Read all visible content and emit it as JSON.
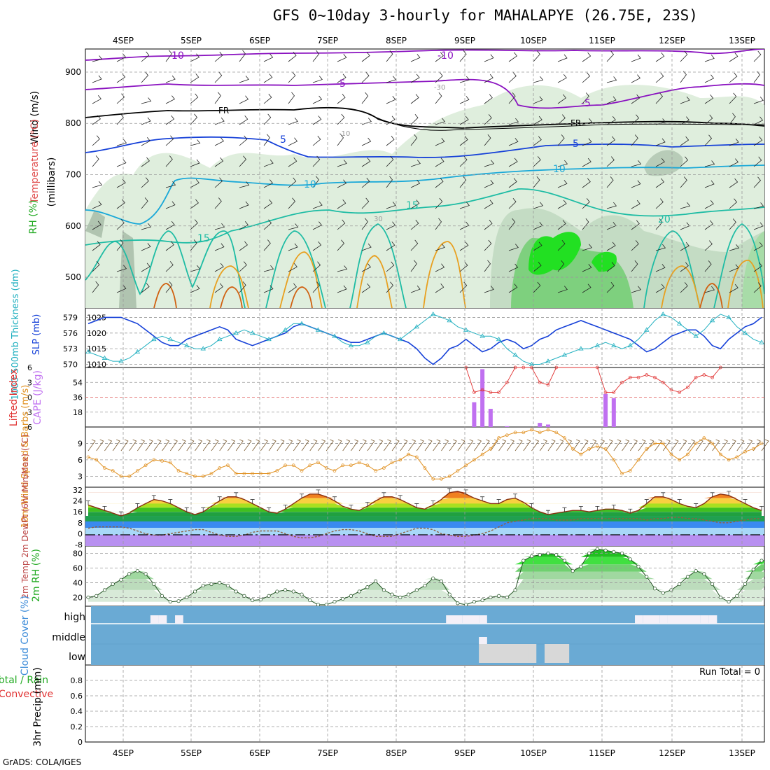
{
  "title": "GFS 0~10day 3-hourly for MAHALAPYE (26.75E, 23S)",
  "footer": "GrADS: COLA/IGES",
  "colors": {
    "purple": "#8a12c0",
    "black": "#000000",
    "blue": "#1540d8",
    "cyan": "#19a8d8",
    "teal": "#1ebca4",
    "orange": "#e8a020",
    "darkorange": "#d06010",
    "rh_green": "#22e022",
    "slp_line": "#1540d8",
    "thk_line": "#22b0c0",
    "cape_bar": "#c070f0",
    "li_line": "#e03030",
    "wind_line": "#e09020",
    "cloud": "#6aaad4"
  },
  "chart_data": [
    {
      "type": "line",
      "name": "panel-upper-air",
      "ylabel_rh": "RH (%)",
      "ylabel_temp": "Temperature (°C)",
      "ylabel_wind": "Wind (m/s)",
      "ylabel_p": "(millibars)",
      "y_ticks": [
        "500",
        "600",
        "700",
        "800",
        "900"
      ],
      "ylim": [
        440,
        945
      ],
      "date_labels": [
        "4SEP",
        "5SEP",
        "6SEP",
        "7SEP",
        "8SEP",
        "9SEP",
        "10SEP",
        "11SEP",
        "12SEP",
        "13SEP"
      ],
      "contour_labels": [
        "-10",
        "-10",
        "-5",
        "-5",
        "FR",
        "FR",
        "5",
        "5",
        "10",
        "10",
        "15",
        "15",
        "20",
        "-10",
        "30",
        "-30"
      ]
    },
    {
      "type": "line",
      "name": "panel-slp-thickness",
      "ylabel_thk": "1000-500mb Thickness (dm)",
      "ylabel_slp": "SLP (mb)",
      "left_ticks": [
        "579",
        "576",
        "573",
        "570"
      ],
      "right_ticks": [
        "1025",
        "1020",
        "1015",
        "1010"
      ],
      "slp_range": [
        1009,
        1028
      ],
      "series": [
        {
          "name": "SLP",
          "values": [
            1023,
            1024,
            1025,
            1025,
            1025,
            1024,
            1023,
            1021,
            1019,
            1017,
            1016,
            1016,
            1018,
            1019,
            1020,
            1021,
            1022,
            1021,
            1018,
            1017,
            1016,
            1017,
            1018,
            1019,
            1020,
            1022,
            1023,
            1022,
            1021,
            1020,
            1019,
            1018,
            1017,
            1017,
            1018,
            1019,
            1020,
            1019,
            1018,
            1017,
            1015,
            1012,
            1010,
            1012,
            1015,
            1016,
            1018,
            1016,
            1014,
            1015,
            1017,
            1018,
            1017,
            1015,
            1016,
            1018,
            1019,
            1021,
            1022,
            1023,
            1024,
            1023,
            1022,
            1021,
            1020,
            1019,
            1018,
            1016,
            1014,
            1015,
            1017,
            1019,
            1020,
            1021,
            1021,
            1019,
            1016,
            1015,
            1018,
            1020,
            1022,
            1023,
            1025
          ]
        },
        {
          "name": "Thickness",
          "values": [
            1014,
            1013,
            1012,
            1011,
            1011,
            1012,
            1014,
            1016,
            1018,
            1019,
            1018,
            1017,
            1016,
            1015,
            1015,
            1016,
            1018,
            1019,
            1020,
            1021,
            1020,
            1019,
            1018,
            1019,
            1021,
            1023,
            1023,
            1022,
            1021,
            1020,
            1019,
            1017,
            1016,
            1016,
            1017,
            1019,
            1020,
            1019,
            1018,
            1020,
            1022,
            1024,
            1026,
            1025,
            1024,
            1022,
            1021,
            1020,
            1019,
            1019,
            1018,
            1015,
            1013,
            1011,
            1010,
            1010,
            1011,
            1012,
            1013,
            1014,
            1015,
            1015,
            1016,
            1017,
            1016,
            1015,
            1016,
            1018,
            1021,
            1024,
            1026,
            1025,
            1023,
            1021,
            1019,
            1021,
            1024,
            1026,
            1025,
            1022,
            1020,
            1018,
            1017
          ]
        }
      ]
    },
    {
      "type": "bar",
      "name": "panel-cape-li",
      "ylabel_li": "Lifted Index",
      "ylabel_cape": "CAPE (J/kg)",
      "li_ticks": [
        "-6",
        "-3",
        "0",
        "3",
        "6"
      ],
      "cape_ticks": [
        "54",
        "36",
        "18"
      ],
      "cape_bars": [
        {
          "x": 47,
          "value": 30
        },
        {
          "x": 48,
          "value": 70
        },
        {
          "x": 49,
          "value": 22
        },
        {
          "x": 51,
          "value": 1
        },
        {
          "x": 55,
          "value": 5
        },
        {
          "x": 56,
          "value": 3
        },
        {
          "x": 63,
          "value": 40
        },
        {
          "x": 64,
          "value": 35
        }
      ],
      "li_series": [
        {
          "x": 46,
          "value": 6
        },
        {
          "x": 47,
          "value": 1
        },
        {
          "x": 48,
          "value": 1.5
        },
        {
          "x": 49,
          "value": 1
        },
        {
          "x": 50,
          "value": 1
        },
        {
          "x": 51,
          "value": 3
        },
        {
          "x": 52,
          "value": 6
        },
        {
          "x": 53,
          "value": 6
        },
        {
          "x": 54,
          "value": 6
        },
        {
          "x": 55,
          "value": 3
        },
        {
          "x": 56,
          "value": 2.5
        },
        {
          "x": 57,
          "value": 6
        },
        {
          "x": 62,
          "value": 6
        },
        {
          "x": 63,
          "value": 1
        },
        {
          "x": 64,
          "value": 1
        },
        {
          "x": 65,
          "value": 3
        },
        {
          "x": 66,
          "value": 4
        },
        {
          "x": 67,
          "value": 4
        },
        {
          "x": 68,
          "value": 4.5
        },
        {
          "x": 69,
          "value": 4
        },
        {
          "x": 70,
          "value": 3
        },
        {
          "x": 71,
          "value": 1.5
        },
        {
          "x": 72,
          "value": 1
        },
        {
          "x": 73,
          "value": 2
        },
        {
          "x": 74,
          "value": 4
        },
        {
          "x": 75,
          "value": 4.5
        },
        {
          "x": 76,
          "value": 4
        },
        {
          "x": 77,
          "value": 6
        }
      ]
    },
    {
      "type": "line",
      "name": "panel-10m-wind",
      "ylabel": "10m Wind Speed & Barbs (m/s)",
      "y_ticks": [
        "9",
        "6",
        "3"
      ],
      "ylim": [
        1,
        12
      ],
      "series": [
        {
          "name": "Speed",
          "values": [
            6.5,
            6,
            4.5,
            4,
            3,
            3,
            4,
            5,
            6,
            5.8,
            5.5,
            4,
            3.5,
            3,
            3,
            3.5,
            4.5,
            5,
            3.5,
            3.5,
            3.5,
            3.5,
            3.5,
            4,
            5,
            5,
            4,
            5,
            5.5,
            4.5,
            4,
            5,
            5,
            5.5,
            5,
            4,
            4.5,
            5.5,
            6,
            7,
            6.5,
            4.5,
            2.5,
            2.5,
            3,
            4,
            5,
            6,
            7,
            8,
            10,
            10.5,
            11,
            11,
            11.5,
            11,
            11.5,
            11,
            10,
            8,
            7,
            8,
            8.5,
            8,
            6,
            3.5,
            4,
            6,
            8,
            9,
            9,
            7,
            6,
            7,
            9,
            10,
            9,
            7,
            6,
            6.5,
            7.5,
            8,
            9
          ]
        }
      ]
    },
    {
      "type": "area",
      "name": "panel-2m-temp",
      "ylabel": "2m Temp 2m DewPt (6hr Min/Max) (°C)",
      "y_ticks": [
        "32",
        "24",
        "16",
        "8",
        "0",
        "-8"
      ],
      "ylim": [
        -9,
        34
      ],
      "series": [
        {
          "name": "Temp",
          "values": [
            21,
            19,
            17,
            15,
            13,
            15,
            19,
            22,
            25,
            24,
            22,
            19,
            16,
            14,
            16,
            20,
            24,
            27,
            27,
            25,
            22,
            19,
            16,
            15,
            18,
            22,
            26,
            29,
            29,
            27,
            24,
            20,
            18,
            17,
            20,
            24,
            27,
            27,
            25,
            22,
            19,
            18,
            21,
            25,
            30,
            31,
            29,
            26,
            24,
            22,
            22,
            25,
            26,
            23,
            19,
            16,
            14,
            15,
            16,
            17,
            17,
            16,
            17,
            18,
            18,
            17,
            15,
            17,
            22,
            27,
            27,
            25,
            22,
            20,
            19,
            22,
            27,
            29,
            28,
            25,
            22,
            19,
            17
          ]
        },
        {
          "name": "DewPt",
          "values": [
            4,
            5,
            5,
            5,
            5,
            4,
            2,
            0,
            -1,
            -1,
            0,
            1,
            2,
            3,
            3,
            1,
            -1,
            -2,
            -2,
            -1,
            1,
            2,
            2,
            2,
            0,
            -2,
            -3,
            -3,
            -2,
            0,
            2,
            3,
            3,
            2,
            0,
            -2,
            -2,
            -2,
            0,
            2,
            4,
            4,
            3,
            0,
            -1,
            -2,
            -2,
            -1,
            0,
            2,
            5,
            8,
            9,
            10,
            11,
            11,
            11,
            10,
            10,
            10,
            11,
            11,
            11,
            11,
            11,
            11,
            11,
            11,
            10,
            11,
            11,
            12,
            12,
            11,
            11,
            10,
            9,
            8,
            8,
            9,
            10,
            11,
            11
          ]
        }
      ]
    },
    {
      "type": "area",
      "name": "panel-2m-rh",
      "ylabel": "2m RH (%)",
      "y_ticks": [
        "80",
        "60",
        "40",
        "20"
      ],
      "ylim": [
        8,
        90
      ],
      "series": [
        {
          "name": "RH",
          "values": [
            20,
            22,
            30,
            38,
            44,
            52,
            56,
            52,
            38,
            22,
            14,
            15,
            20,
            28,
            36,
            38,
            40,
            36,
            28,
            22,
            16,
            17,
            22,
            28,
            30,
            28,
            24,
            16,
            10,
            10,
            14,
            18,
            22,
            28,
            34,
            42,
            30,
            24,
            20,
            24,
            30,
            36,
            46,
            42,
            24,
            12,
            10,
            14,
            16,
            20,
            22,
            20,
            30,
            70,
            76,
            78,
            80,
            78,
            70,
            56,
            62,
            80,
            86,
            84,
            82,
            80,
            72,
            62,
            48,
            32,
            26,
            30,
            38,
            48,
            56,
            52,
            38,
            20,
            14,
            22,
            38,
            58,
            70,
            70
          ]
        }
      ]
    },
    {
      "type": "heatmap",
      "name": "panel-cloud-cover",
      "ylabel": "Cloud Cover (%)",
      "row_labels": [
        "high",
        "middle",
        "low"
      ],
      "clear_blocks": [
        {
          "row": "high",
          "from": 8,
          "to": 9
        },
        {
          "row": "high",
          "from": 9,
          "to": 10
        },
        {
          "row": "high",
          "from": 11,
          "to": 12
        },
        {
          "row": "high",
          "from": 44,
          "to": 46
        },
        {
          "row": "high",
          "from": 46,
          "to": 48
        },
        {
          "row": "high",
          "from": 48,
          "to": 49
        },
        {
          "row": "high",
          "from": 67,
          "to": 68
        },
        {
          "row": "high",
          "from": 68,
          "to": 70
        },
        {
          "row": "high",
          "from": 70,
          "to": 71
        },
        {
          "row": "high",
          "from": 71,
          "to": 75
        },
        {
          "row": "high",
          "from": 75,
          "to": 76
        },
        {
          "row": "high",
          "from": 76,
          "to": 77
        },
        {
          "row": "middle",
          "from": 48,
          "to": 49
        },
        {
          "row": "low",
          "from": 48,
          "to": 54
        },
        {
          "row": "low",
          "from": 54,
          "to": 55
        },
        {
          "row": "low",
          "from": 56,
          "to": 59
        }
      ]
    },
    {
      "type": "bar",
      "name": "panel-precip",
      "ylabel_a": "Total / Rain",
      "ylabel_b": "Convective",
      "ylabel_c": "3hr Precip (mm)",
      "y_ticks": [
        "0.8",
        "0.6",
        "0.4",
        "0.2",
        "0"
      ],
      "ylim": [
        0,
        1
      ],
      "run_total": "Run Total = 0",
      "values": []
    }
  ]
}
